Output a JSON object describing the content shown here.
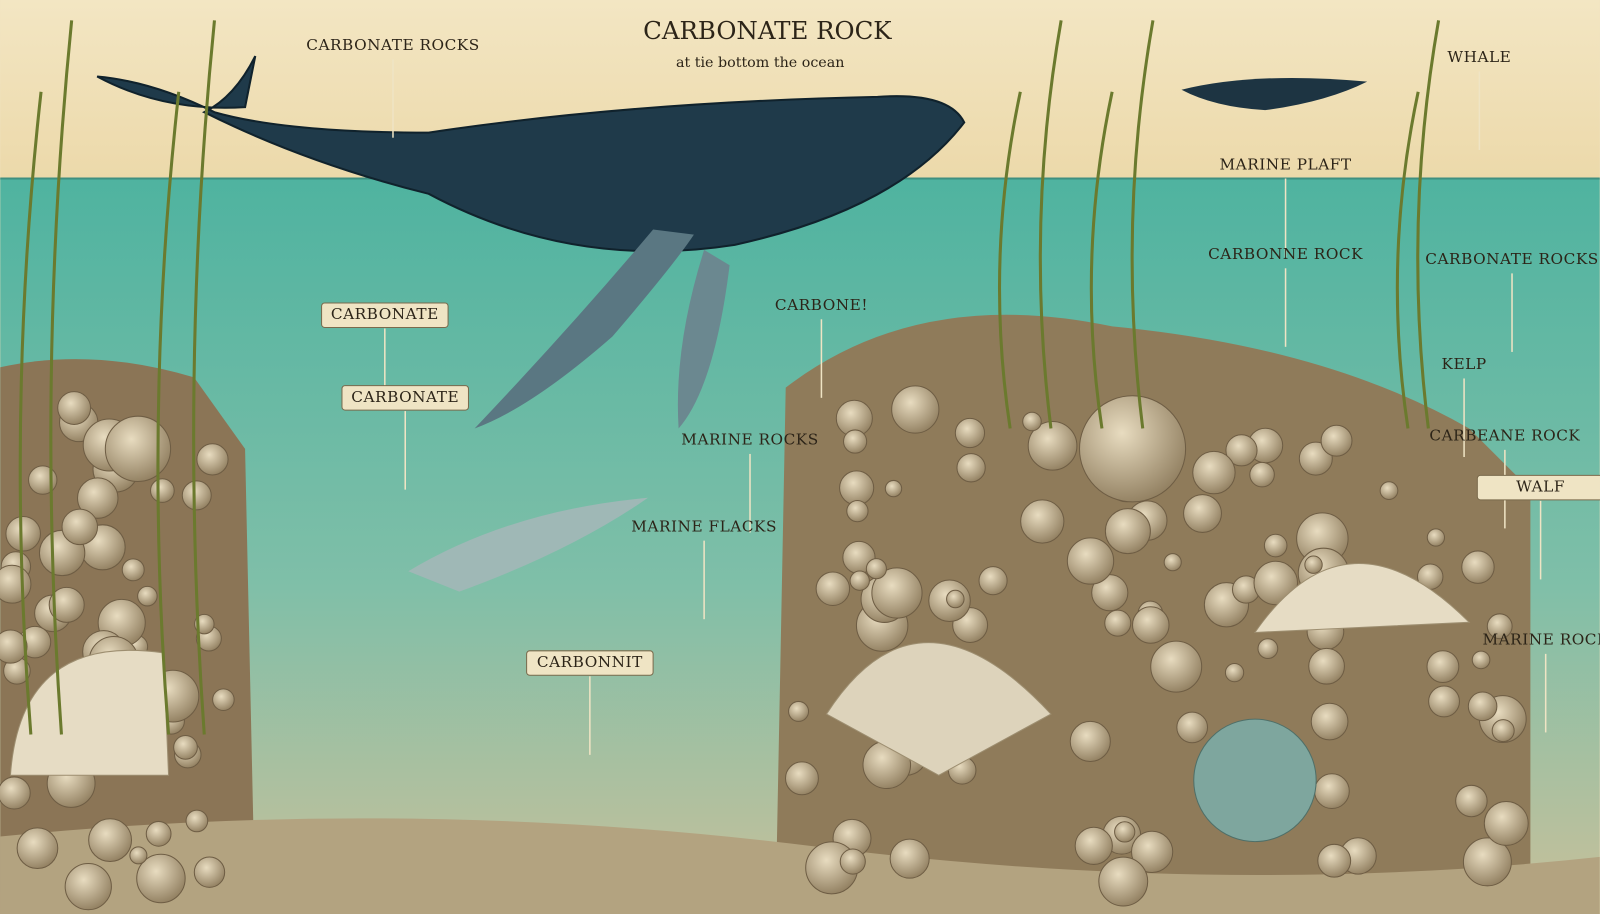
{
  "title": "CARBONATE ROCK",
  "subtitle": "at tie bottom the ocean",
  "labels": [
    {
      "text": "CARBONATE ROCKS"
    },
    {
      "text": "WHALE"
    },
    {
      "text": "MARINE PLAFT"
    },
    {
      "text": "CARBONATE"
    },
    {
      "text": "CARBONATE"
    },
    {
      "text": "CARBONE!"
    },
    {
      "text": "MARINE ROCKS"
    },
    {
      "text": "MARINE FLACKS"
    },
    {
      "text": "CARBONNE ROCK"
    },
    {
      "text": "CARBONATE ROCKS"
    },
    {
      "text": "KELP"
    },
    {
      "text": "CARBEANE ROCK"
    },
    {
      "text": "WALF"
    },
    {
      "text": "MARINE ROCK"
    },
    {
      "text": "CARBONNIT"
    }
  ]
}
